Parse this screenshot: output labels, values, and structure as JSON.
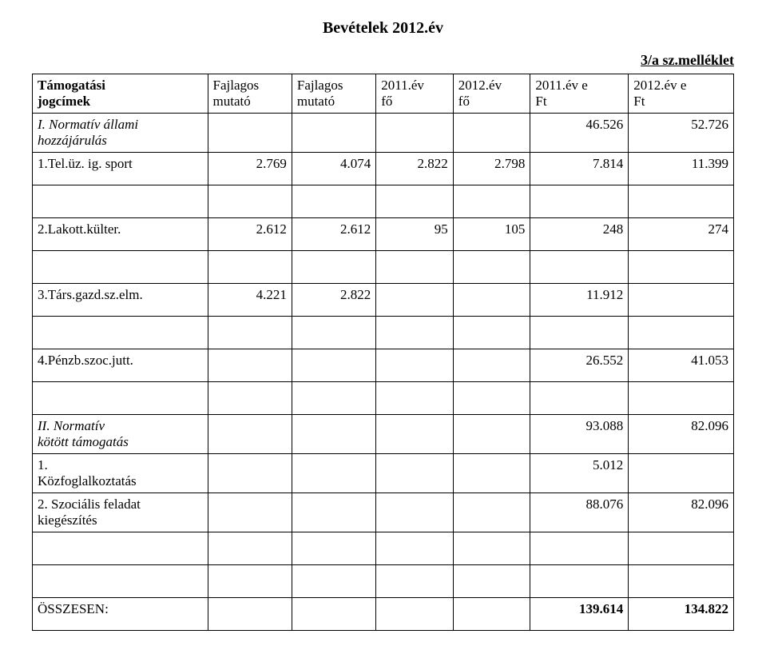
{
  "title": "Bevételek 2012.év",
  "annex": "3/a sz.melléklet",
  "headers": {
    "name_l1": "Támogatási",
    "name_l2": "jogcímek",
    "a_l1": "Fajlagos",
    "a_l2": "mutató",
    "b_l1": "Fajlagos",
    "b_l2": "mutató",
    "c_l1": "2011.év",
    "c_l2": "fő",
    "d_l1": "2012.év",
    "d_l2": "fő",
    "e_l1": "2011.év e",
    "e_l2": "Ft",
    "f_l1": "2012.év e",
    "f_l2": "Ft"
  },
  "rows": {
    "r1": {
      "name_l1": "I. Normatív állami",
      "name_l2": "hozzájárulás",
      "e": "46.526",
      "f": "52.726"
    },
    "r2": {
      "name": "1.Tel.üz. ig. sport",
      "a": "2.769",
      "b": "4.074",
      "c": "2.822",
      "d": "2.798",
      "e": "7.814",
      "f": "11.399"
    },
    "r3": {
      "name": "2.Lakott.külter.",
      "a": "2.612",
      "b": "2.612",
      "c": "95",
      "d": "105",
      "e": "248",
      "f": "274"
    },
    "r4": {
      "name": "3.Társ.gazd.sz.elm.",
      "a": "4.221",
      "b": "2.822",
      "e": "11.912"
    },
    "r5": {
      "name": "4.Pénzb.szoc.jutt.",
      "e": "26.552",
      "f": "41.053"
    },
    "r6": {
      "name_l1": "II. Normatív",
      "name_l2": "kötött támogatás",
      "e": "93.088",
      "f": "82.096"
    },
    "r7": {
      "name_l1": "1.",
      "name_l2": "Közfoglalkoztatás",
      "e": "5.012"
    },
    "r8": {
      "name_l1": "2. Szociális feladat",
      "name_l2": "kiegészítés",
      "e": "88.076",
      "f": "82.096"
    },
    "total": {
      "name": "ÖSSZESEN:",
      "e": "139.614",
      "f": "134.822"
    }
  }
}
